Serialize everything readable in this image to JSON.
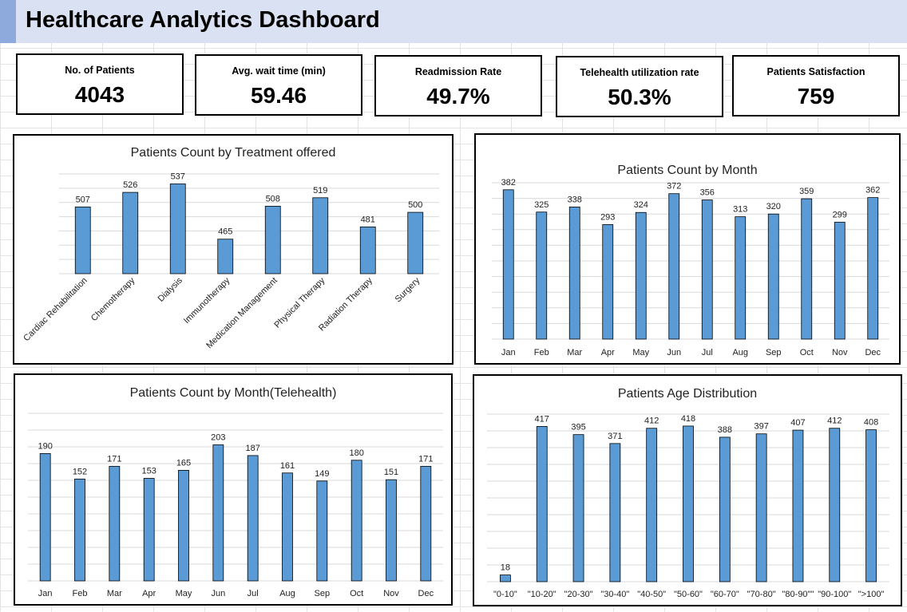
{
  "header": {
    "title": "Healthcare Analytics Dashboard"
  },
  "kpis": [
    {
      "label": "No. of Patients",
      "value": "4043"
    },
    {
      "label": "Avg. wait time (min)",
      "value": "59.46"
    },
    {
      "label": "Readmission Rate",
      "value": "49.7%"
    },
    {
      "label": "Telehealth utilization rate",
      "value": "50.3%"
    },
    {
      "label": "Patients Satisfaction",
      "value": "759"
    }
  ],
  "colors": {
    "bar": "#5b9bd5",
    "bar_border": "#000000",
    "grid": "#d9d9d9",
    "header_bg": "#d9e1f2",
    "header_accent": "#8ea9db"
  },
  "chart_data": [
    {
      "type": "bar",
      "title": "Patients Count by Treatment offered",
      "categories": [
        "Cardiac Rehabilitation",
        "Chemotherapy",
        "Dialysis",
        "Immunotherapy",
        "Medication Management",
        "Physical Therapy",
        "Radiation Therapy",
        "Surgery"
      ],
      "values": [
        507,
        526,
        537,
        465,
        508,
        519,
        481,
        500
      ],
      "ylim": [
        420,
        550
      ],
      "grid": true,
      "legend": "none"
    },
    {
      "type": "bar",
      "title": "Patients Count by Month",
      "categories": [
        "Jan",
        "Feb",
        "Mar",
        "Apr",
        "May",
        "Jun",
        "Jul",
        "Aug",
        "Sep",
        "Oct",
        "Nov",
        "Dec"
      ],
      "values": [
        382,
        325,
        338,
        293,
        324,
        372,
        356,
        313,
        320,
        359,
        299,
        362
      ],
      "ylim": [
        0,
        400
      ],
      "grid": true,
      "legend": "none"
    },
    {
      "type": "bar",
      "title": "Patients Count by Month(Telehealth)",
      "categories": [
        "Jan",
        "Feb",
        "Mar",
        "Apr",
        "May",
        "Jun",
        "Jul",
        "Aug",
        "Sep",
        "Oct",
        "Nov",
        "Dec"
      ],
      "values": [
        190,
        152,
        171,
        153,
        165,
        203,
        187,
        161,
        149,
        180,
        151,
        171
      ],
      "ylim": [
        0,
        250
      ],
      "grid": true,
      "legend": "none"
    },
    {
      "type": "bar",
      "title": "Patients Age Distribution",
      "categories": [
        "\"0-10\"",
        "\"10-20\"",
        "\"20-30\"",
        "\"30-40\"",
        "\"40-50\"",
        "\"50-60\"",
        "\"60-70\"",
        "\"70-80\"",
        "\"80-90\"\"",
        "\"90-100\"",
        "\">100\""
      ],
      "values": [
        18,
        417,
        395,
        371,
        412,
        418,
        388,
        397,
        407,
        412,
        408
      ],
      "ylim": [
        0,
        450
      ],
      "grid": true,
      "legend": "none"
    }
  ]
}
